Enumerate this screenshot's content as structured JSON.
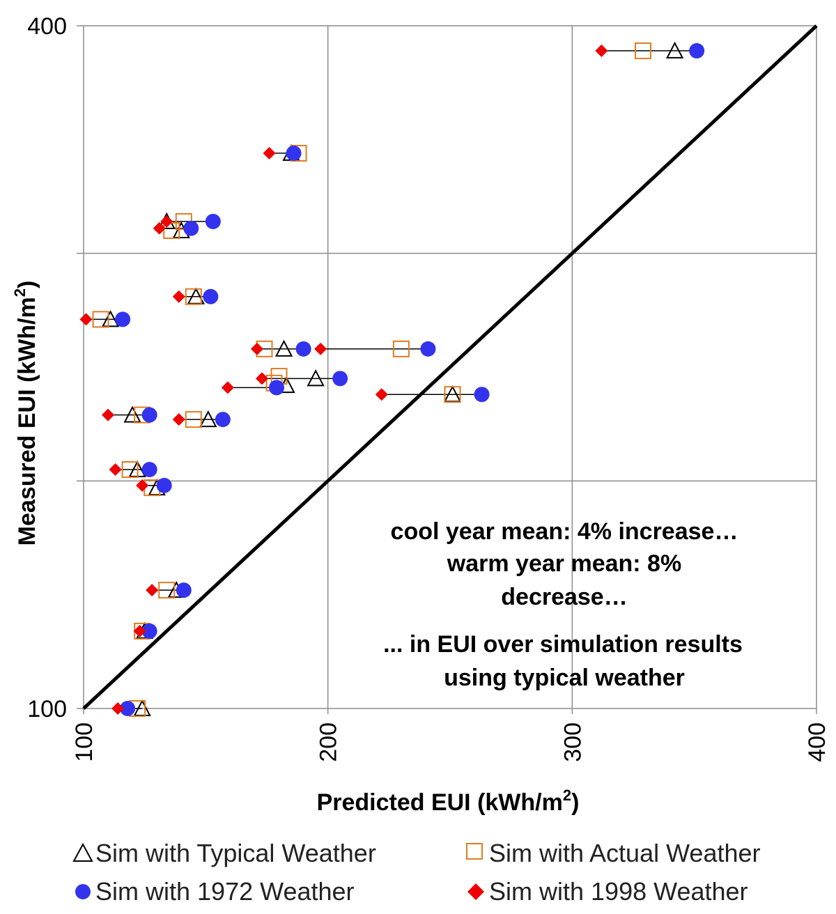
{
  "chart_data": {
    "type": "scatter",
    "xlabel": "Predicted EUI (kWh/m",
    "xlabel_sup": "2",
    "xlabel_end": ")",
    "ylabel": "Measured EUI (kWh/m",
    "ylabel_sup": "2",
    "ylabel_end": ")",
    "xlim": [
      100,
      400
    ],
    "ylim": [
      100,
      400
    ],
    "x_ticks": [
      "100",
      "200",
      "300",
      "400"
    ],
    "y_ticks": [
      "100",
      "400"
    ],
    "grid": true,
    "reference_line": "y = x",
    "legend_position": "bottom",
    "annotations": [
      "cool year mean: 4% increase…",
      "warm year mean: 8%",
      "decrease…",
      "... in EUI over simulation results",
      "using typical weather"
    ],
    "series": [
      {
        "name": "Sim with Typical Weather",
        "marker": "triangle",
        "color": "#000000",
        "points": [
          [
            342,
            389
          ],
          [
            185,
            344
          ],
          [
            140,
            310
          ],
          [
            134,
            314
          ],
          [
            146,
            281
          ],
          [
            111,
            271
          ],
          [
            182,
            258
          ],
          [
            195,
            245
          ],
          [
            183,
            242
          ],
          [
            251,
            238
          ],
          [
            120,
            229
          ],
          [
            151,
            227
          ],
          [
            122,
            205
          ],
          [
            130,
            197
          ],
          [
            138,
            152
          ],
          [
            125,
            134
          ],
          [
            124,
            100
          ]
        ]
      },
      {
        "name": "Sim with Actual Weather",
        "marker": "square",
        "color": "#E07B22",
        "points": [
          [
            329,
            389
          ],
          [
            188,
            344
          ],
          [
            141,
            314
          ],
          [
            136,
            310
          ],
          [
            145,
            281
          ],
          [
            107,
            271
          ],
          [
            174,
            258
          ],
          [
            230,
            258
          ],
          [
            180,
            246
          ],
          [
            178,
            243
          ],
          [
            251,
            238
          ],
          [
            124,
            229
          ],
          [
            145,
            227
          ],
          [
            119,
            205
          ],
          [
            128,
            197
          ],
          [
            134,
            152
          ],
          [
            124,
            134
          ],
          [
            122,
            100
          ]
        ]
      },
      {
        "name": "Sim with 1972 Weather",
        "marker": "circle",
        "color": "#3333EE",
        "points": [
          [
            351,
            389
          ],
          [
            186,
            344
          ],
          [
            153,
            314
          ],
          [
            144,
            311
          ],
          [
            152,
            281
          ],
          [
            116,
            271
          ],
          [
            190,
            258
          ],
          [
            241,
            258
          ],
          [
            205,
            245
          ],
          [
            179,
            241
          ],
          [
            263,
            238
          ],
          [
            127,
            229
          ],
          [
            157,
            227
          ],
          [
            127,
            205
          ],
          [
            133,
            198
          ],
          [
            141,
            152
          ],
          [
            127,
            134
          ],
          [
            118,
            100
          ]
        ]
      },
      {
        "name": "Sim with 1998 Weather",
        "marker": "diamond",
        "color": "#EE0000",
        "points": [
          [
            312,
            389
          ],
          [
            176,
            344
          ],
          [
            134,
            314
          ],
          [
            131,
            311
          ],
          [
            139,
            281
          ],
          [
            101,
            271
          ],
          [
            171,
            258
          ],
          [
            197,
            258
          ],
          [
            173,
            245
          ],
          [
            159,
            241
          ],
          [
            222,
            238
          ],
          [
            110,
            229
          ],
          [
            139,
            227
          ],
          [
            113,
            205
          ],
          [
            124,
            198
          ],
          [
            128,
            152
          ],
          [
            123,
            134
          ],
          [
            114,
            100
          ]
        ]
      }
    ],
    "connectors": [
      [
        312,
        351,
        389
      ],
      [
        176,
        188,
        344
      ],
      [
        131,
        144,
        311
      ],
      [
        134,
        153,
        314
      ],
      [
        139,
        152,
        281
      ],
      [
        101,
        116,
        271
      ],
      [
        171,
        190,
        258
      ],
      [
        197,
        241,
        258
      ],
      [
        173,
        205,
        245
      ],
      [
        159,
        179,
        241
      ],
      [
        222,
        263,
        238
      ],
      [
        110,
        127,
        229
      ],
      [
        139,
        157,
        227
      ],
      [
        113,
        127,
        205
      ],
      [
        124,
        133,
        198
      ],
      [
        128,
        141,
        152
      ],
      [
        123,
        127,
        134
      ],
      [
        114,
        124,
        100
      ]
    ]
  }
}
